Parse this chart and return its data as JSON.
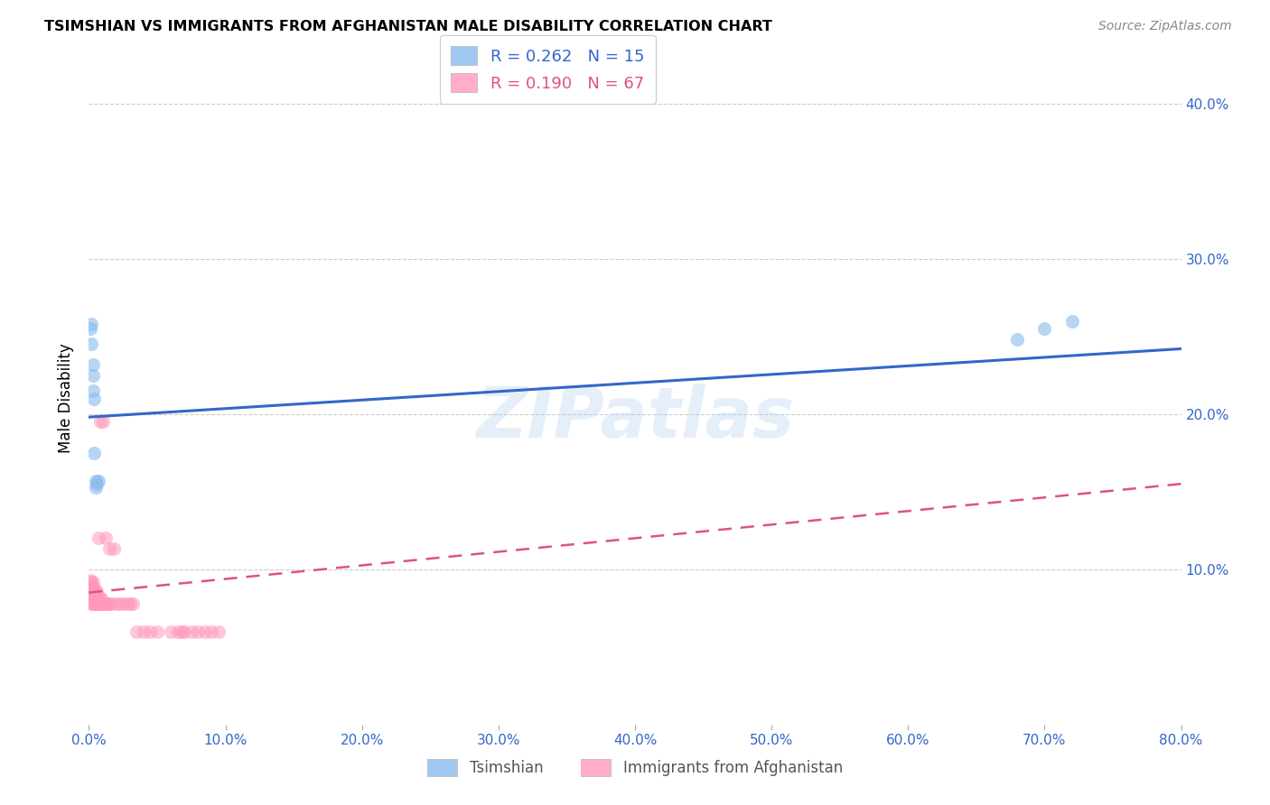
{
  "title": "TSIMSHIAN VS IMMIGRANTS FROM AFGHANISTAN MALE DISABILITY CORRELATION CHART",
  "source": "Source: ZipAtlas.com",
  "ylabel": "Male Disability",
  "blue_color": "#88BBEE",
  "pink_color": "#FF99BB",
  "blue_line_color": "#3366CC",
  "pink_line_color": "#DD5577",
  "series1_label": "Tsimshian",
  "series2_label": "Immigrants from Afghanistan",
  "xlim": [
    0.0,
    0.8
  ],
  "ylim": [
    0.0,
    0.42
  ],
  "watermark": "ZIPatlas",
  "xtick_vals": [
    0.0,
    0.1,
    0.2,
    0.3,
    0.4,
    0.5,
    0.6,
    0.7,
    0.8
  ],
  "xtick_labels": [
    "0.0%",
    "10.0%",
    "20.0%",
    "30.0%",
    "40.0%",
    "50.0%",
    "60.0%",
    "70.0%",
    "80.0%"
  ],
  "ytick_vals": [
    0.1,
    0.2,
    0.3,
    0.4
  ],
  "ytick_labels": [
    "10.0%",
    "20.0%",
    "30.0%",
    "40.0%"
  ],
  "tsimshian_x": [
    0.001,
    0.002,
    0.002,
    0.003,
    0.003,
    0.003,
    0.004,
    0.004,
    0.005,
    0.005,
    0.006,
    0.007,
    0.68,
    0.7,
    0.72
  ],
  "tsimshian_y": [
    0.255,
    0.258,
    0.245,
    0.232,
    0.225,
    0.215,
    0.21,
    0.175,
    0.157,
    0.153,
    0.155,
    0.157,
    0.248,
    0.255,
    0.26
  ],
  "afghanistan_x": [
    0.001,
    0.001,
    0.001,
    0.001,
    0.001,
    0.002,
    0.002,
    0.002,
    0.002,
    0.002,
    0.002,
    0.003,
    0.003,
    0.003,
    0.003,
    0.003,
    0.003,
    0.004,
    0.004,
    0.004,
    0.004,
    0.005,
    0.005,
    0.005,
    0.005,
    0.006,
    0.006,
    0.006,
    0.006,
    0.007,
    0.007,
    0.007,
    0.008,
    0.008,
    0.008,
    0.009,
    0.009,
    0.01,
    0.01,
    0.011,
    0.012,
    0.012,
    0.013,
    0.014,
    0.015,
    0.015,
    0.016,
    0.018,
    0.02,
    0.022,
    0.025,
    0.028,
    0.03,
    0.032,
    0.035,
    0.04,
    0.045,
    0.05,
    0.06,
    0.065,
    0.068,
    0.07,
    0.075,
    0.08,
    0.085,
    0.09,
    0.095
  ],
  "afghanistan_y": [
    0.08,
    0.083,
    0.086,
    0.09,
    0.093,
    0.078,
    0.081,
    0.083,
    0.086,
    0.089,
    0.092,
    0.078,
    0.081,
    0.083,
    0.086,
    0.089,
    0.092,
    0.078,
    0.081,
    0.083,
    0.086,
    0.078,
    0.081,
    0.083,
    0.086,
    0.078,
    0.081,
    0.083,
    0.086,
    0.078,
    0.081,
    0.12,
    0.078,
    0.081,
    0.195,
    0.078,
    0.081,
    0.078,
    0.195,
    0.078,
    0.078,
    0.12,
    0.078,
    0.078,
    0.078,
    0.113,
    0.078,
    0.113,
    0.078,
    0.078,
    0.078,
    0.078,
    0.078,
    0.078,
    0.06,
    0.06,
    0.06,
    0.06,
    0.06,
    0.06,
    0.06,
    0.06,
    0.06,
    0.06,
    0.06,
    0.06,
    0.06
  ],
  "blue_line_x0": 0.0,
  "blue_line_y0": 0.198,
  "blue_line_x1": 0.8,
  "blue_line_y1": 0.242,
  "pink_line_x0": 0.0,
  "pink_line_y0": 0.085,
  "pink_line_x1": 0.8,
  "pink_line_y1": 0.155
}
